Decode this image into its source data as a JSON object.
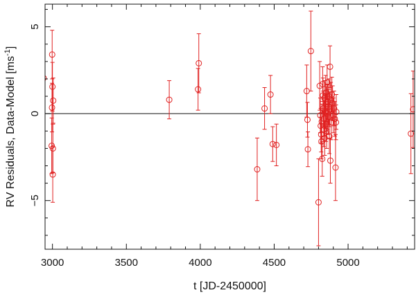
{
  "chart_data": {
    "type": "scatter",
    "xlabel": "t [JD-2450000]",
    "ylabel": "RV Residuals, Data-Model [ms",
    "ylabel_sup": "-1",
    "ylabel_end": "]",
    "xlim": [
      2950,
      5450
    ],
    "ylim": [
      -7.8,
      6.3
    ],
    "xticks": [
      3000,
      3500,
      4000,
      4500,
      5000
    ],
    "yticks": [
      -5,
      0,
      5
    ],
    "zero_line": 0,
    "marker_color": "#e02020",
    "series": [
      {
        "points": [
          {
            "x": 2940,
            "y": 2.05,
            "err": 0.0
          },
          {
            "x": 2995,
            "y": -1.85,
            "err": 1.6
          },
          {
            "x": 2997,
            "y": 0.35,
            "err": 1.4
          },
          {
            "x": 2998,
            "y": 3.4,
            "err": 1.4
          },
          {
            "x": 3000,
            "y": 1.55,
            "err": 1.4
          },
          {
            "x": 3002,
            "y": -3.5,
            "err": 1.6
          },
          {
            "x": 3003,
            "y": -2.0,
            "err": 1.4
          },
          {
            "x": 3005,
            "y": 0.75,
            "err": 1.3
          },
          {
            "x": 3790,
            "y": 0.8,
            "err": 1.1
          },
          {
            "x": 3985,
            "y": 1.4,
            "err": 1.2
          },
          {
            "x": 3990,
            "y": 2.9,
            "err": 1.7
          },
          {
            "x": 4385,
            "y": -3.2,
            "err": 1.8
          },
          {
            "x": 4435,
            "y": 0.3,
            "err": 1.2
          },
          {
            "x": 4475,
            "y": 1.1,
            "err": 1.1
          },
          {
            "x": 4490,
            "y": -1.75,
            "err": 1.0
          },
          {
            "x": 4515,
            "y": -1.8,
            "err": 1.2
          },
          {
            "x": 4720,
            "y": 1.3,
            "err": 1.5
          },
          {
            "x": 4725,
            "y": -0.35,
            "err": 1.0
          },
          {
            "x": 4728,
            "y": -2.05,
            "err": 1.0
          },
          {
            "x": 4748,
            "y": 3.6,
            "err": 2.3
          },
          {
            "x": 4800,
            "y": -5.1,
            "err": 2.5
          },
          {
            "x": 4808,
            "y": 1.6,
            "err": 1.4
          },
          {
            "x": 4812,
            "y": -0.1,
            "err": 1.0
          },
          {
            "x": 4815,
            "y": -0.7,
            "err": 1.0
          },
          {
            "x": 4818,
            "y": -1.2,
            "err": 1.0
          },
          {
            "x": 4820,
            "y": -1.6,
            "err": 1.0
          },
          {
            "x": 4822,
            "y": -0.45,
            "err": 1.0
          },
          {
            "x": 4825,
            "y": -2.6,
            "err": 1.0
          },
          {
            "x": 4828,
            "y": 1.7,
            "err": 1.0
          },
          {
            "x": 4830,
            "y": 1.05,
            "err": 1.0
          },
          {
            "x": 4832,
            "y": 0.3,
            "err": 1.0
          },
          {
            "x": 4835,
            "y": -0.9,
            "err": 1.0
          },
          {
            "x": 4838,
            "y": -0.3,
            "err": 1.0
          },
          {
            "x": 4840,
            "y": 0.9,
            "err": 1.0
          },
          {
            "x": 4842,
            "y": -1.4,
            "err": 1.0
          },
          {
            "x": 4845,
            "y": 0.15,
            "err": 1.0
          },
          {
            "x": 4848,
            "y": 1.2,
            "err": 1.0
          },
          {
            "x": 4850,
            "y": -0.6,
            "err": 1.0
          },
          {
            "x": 4852,
            "y": 0.55,
            "err": 1.0
          },
          {
            "x": 4855,
            "y": -1.0,
            "err": 1.0
          },
          {
            "x": 4858,
            "y": 1.8,
            "err": 1.0
          },
          {
            "x": 4860,
            "y": 0.0,
            "err": 1.0
          },
          {
            "x": 4862,
            "y": 0.7,
            "err": 1.0
          },
          {
            "x": 4865,
            "y": -0.2,
            "err": 1.0
          },
          {
            "x": 4868,
            "y": 0.4,
            "err": 1.0
          },
          {
            "x": 4870,
            "y": 1.0,
            "err": 1.0
          },
          {
            "x": 4873,
            "y": -1.3,
            "err": 1.0
          },
          {
            "x": 4876,
            "y": 0.25,
            "err": 1.0
          },
          {
            "x": 4878,
            "y": 2.7,
            "err": 1.2
          },
          {
            "x": 4880,
            "y": -2.7,
            "err": 1.3
          },
          {
            "x": 4883,
            "y": 0.8,
            "err": 1.0
          },
          {
            "x": 4886,
            "y": -0.5,
            "err": 1.0
          },
          {
            "x": 4890,
            "y": 1.1,
            "err": 1.0
          },
          {
            "x": 4895,
            "y": 0.6,
            "err": 1.0
          },
          {
            "x": 4900,
            "y": -0.1,
            "err": 1.0
          },
          {
            "x": 4905,
            "y": 0.3,
            "err": 1.0
          },
          {
            "x": 4910,
            "y": -0.3,
            "err": 1.0
          },
          {
            "x": 4915,
            "y": -3.1,
            "err": 1.9
          },
          {
            "x": 4918,
            "y": -0.5,
            "err": 1.0
          },
          {
            "x": 4920,
            "y": 0.1,
            "err": 1.0
          },
          {
            "x": 5425,
            "y": -1.15,
            "err": 2.3
          },
          {
            "x": 5440,
            "y": 0.25,
            "err": 2.2
          }
        ]
      }
    ]
  }
}
